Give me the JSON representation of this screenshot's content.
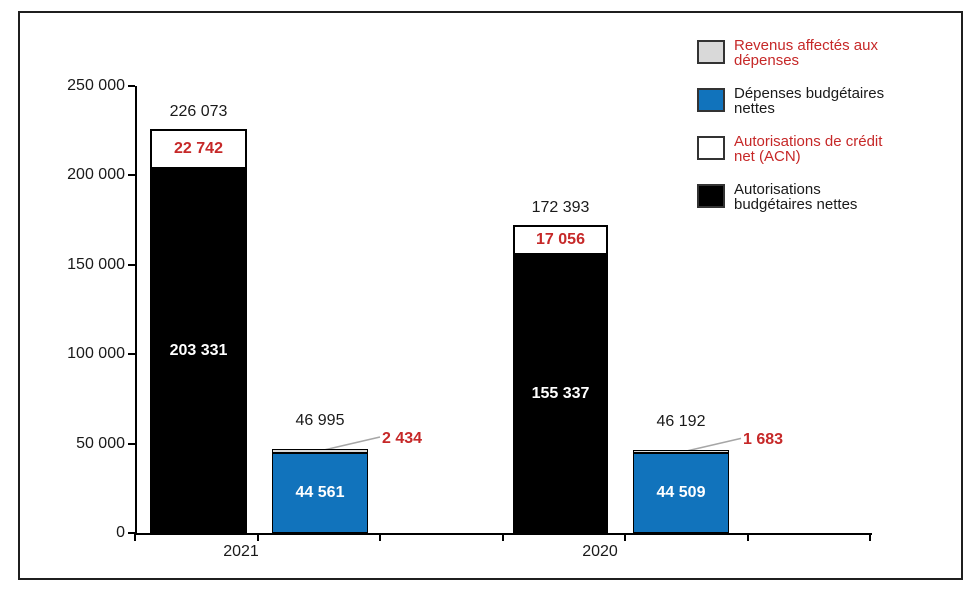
{
  "chart_data": {
    "type": "bar",
    "stacked": true,
    "title": "",
    "categories": [
      "2021",
      "2020"
    ],
    "ylim": [
      0,
      250000
    ],
    "y_tick_step": 50000,
    "y_tick_labels": [
      "0",
      "50 000",
      "100 000",
      "150 000",
      "200 000",
      "250 000"
    ],
    "grid": false,
    "legend_position": "top-right",
    "series": [
      {
        "id": "abn",
        "name": "Autorisations budgétaires nettes",
        "values": [
          203331,
          155337
        ],
        "labels": [
          "203 331",
          "155 337"
        ]
      },
      {
        "id": "acn",
        "name": "Autorisations de crédit net (ACN)",
        "values": [
          22742,
          17056
        ],
        "labels": [
          "22 742",
          "17 056"
        ]
      },
      {
        "id": "dbn",
        "name": "Dépenses budgétaires nettes",
        "values": [
          44561,
          44509
        ],
        "labels": [
          "44 561",
          "44 509"
        ]
      },
      {
        "id": "rad",
        "name": "Revenus affectés aux dépenses",
        "values": [
          2434,
          1683
        ],
        "labels": [
          "2 434",
          "1 683"
        ]
      }
    ],
    "bar_totals": {
      "authorizations": {
        "values": [
          226073,
          172393
        ],
        "labels": [
          "226 073",
          "172 393"
        ]
      },
      "expenses": {
        "values": [
          46995,
          46192
        ],
        "labels": [
          "46 995",
          "46 192"
        ]
      }
    },
    "series_styles": {
      "abn": {
        "fill": "#000000",
        "border": "#000000",
        "label_color": "#ffffff"
      },
      "acn": {
        "fill": "#ffffff",
        "border": "#000000",
        "label_color": "#c62828"
      },
      "dbn": {
        "fill": "#1173bc",
        "border": "#000000",
        "label_color": "#ffffff"
      },
      "rad": {
        "fill": "#d9d9d9",
        "border": "#000000",
        "label_color": "#c62828"
      }
    }
  },
  "legend": {
    "items": [
      {
        "id": "rad",
        "label": "Revenus affectés aux dépenses",
        "lines": [
          "Revenus affectés aux",
          "dépenses"
        ],
        "swatch": "#d9d9d9",
        "text_color": "#c62828"
      },
      {
        "id": "dbn",
        "label": "Dépenses budgétaires nettes",
        "lines": [
          "Dépenses budgétaires",
          "nettes"
        ],
        "swatch": "#1173bc",
        "text_color": "#1a1a1a"
      },
      {
        "id": "acn",
        "label": "Autorisations de crédit net (ACN)",
        "lines": [
          "Autorisations de crédit",
          "net (ACN)"
        ],
        "swatch": "#ffffff",
        "text_color": "#c62828"
      },
      {
        "id": "abn",
        "label": "Autorisations budgétaires nettes",
        "lines": [
          "Autorisations",
          "budgétaires nettes"
        ],
        "swatch": "#000000",
        "text_color": "#1a1a1a"
      }
    ]
  },
  "colors": {
    "accent_red": "#c62828",
    "accent_blue": "#1173bc",
    "light_gray": "#d9d9d9",
    "callout_line": "#a6a6a6",
    "axis": "#000000",
    "frame_border": "#1f1f1f"
  }
}
